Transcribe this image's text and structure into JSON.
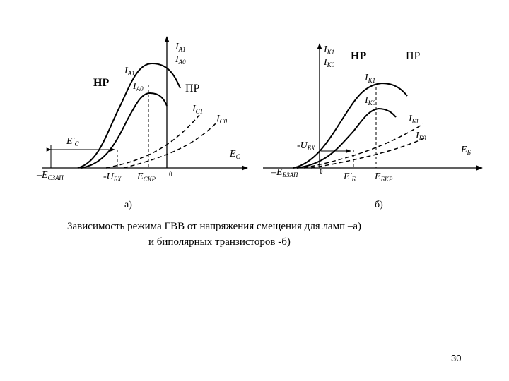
{
  "left": {
    "ia1_top": "I",
    "ia1_top_sub": "A1",
    "ia0_top": "I",
    "ia0_top_sub": "A0",
    "ia1_mid": "I",
    "ia1_mid_sub": "A1",
    "ia0_mid": "I",
    "ia0_mid_sub": "A0",
    "hp": "НР",
    "pp": "ПР",
    "ic1": "I",
    "ic1_sub": "C1",
    "ic0": "I",
    "ic0_sub": "C0",
    "ec_prime": "E'",
    "ec_prime_sub": "C",
    "ec": "E",
    "ec_sub": "C",
    "ecsap": "–E",
    "ecsap_sub": "CЗАП",
    "ubx": "-U",
    "ubx_sub": "БХ",
    "eckp": "E",
    "eckp_sub": "CКР",
    "zero": "0",
    "panel": "а)"
  },
  "right": {
    "ik1_top": "I",
    "ik1_top_sub": "K1",
    "ik0_top": "I",
    "ik0_top_sub": "K0",
    "hp": "НР",
    "pp": "ПР",
    "ik1_mid": "I",
    "ik1_mid_sub": "K1",
    "ik0_mid": "I",
    "ik0_mid_sub": "K0",
    "ib1": "I",
    "ib1_sub": "Б1",
    "ib0": "I",
    "ib0_sub": "Б0",
    "ubx": "-U",
    "ubx_sub": "БХ",
    "eb": "E",
    "eb_sub": "Б",
    "ebsap": "–E",
    "ebsap_sub": "БЗАП",
    "zero": "0",
    "eb_prime": "E'",
    "eb_prime_sub": "Б",
    "ebkp": "E",
    "ebkp_sub": "БКР",
    "panel": "б)"
  },
  "caption_line1": "Зависимость режима ГВВ от напряжения смещения для ламп –а)",
  "caption_line2": "и биполярных транзисторов -б)",
  "page_number": "30"
}
